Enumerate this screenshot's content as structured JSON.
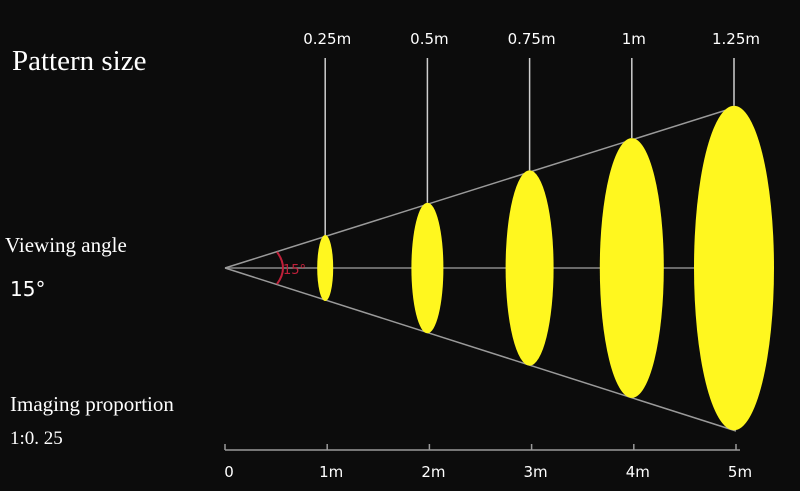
{
  "title": "Pattern size",
  "viewing_angle": {
    "label": "Viewing angle",
    "value": "15°",
    "arc_label": "15°"
  },
  "imaging_proportion": {
    "label": "Imaging proportion",
    "value": "1:0. 25"
  },
  "pattern_sizes": [
    "0.25m",
    "0.5m",
    "0.75m",
    "1m",
    "1.25m"
  ],
  "distances": [
    "0",
    "1m",
    "2m",
    "3m",
    "4m",
    "5m"
  ]
}
